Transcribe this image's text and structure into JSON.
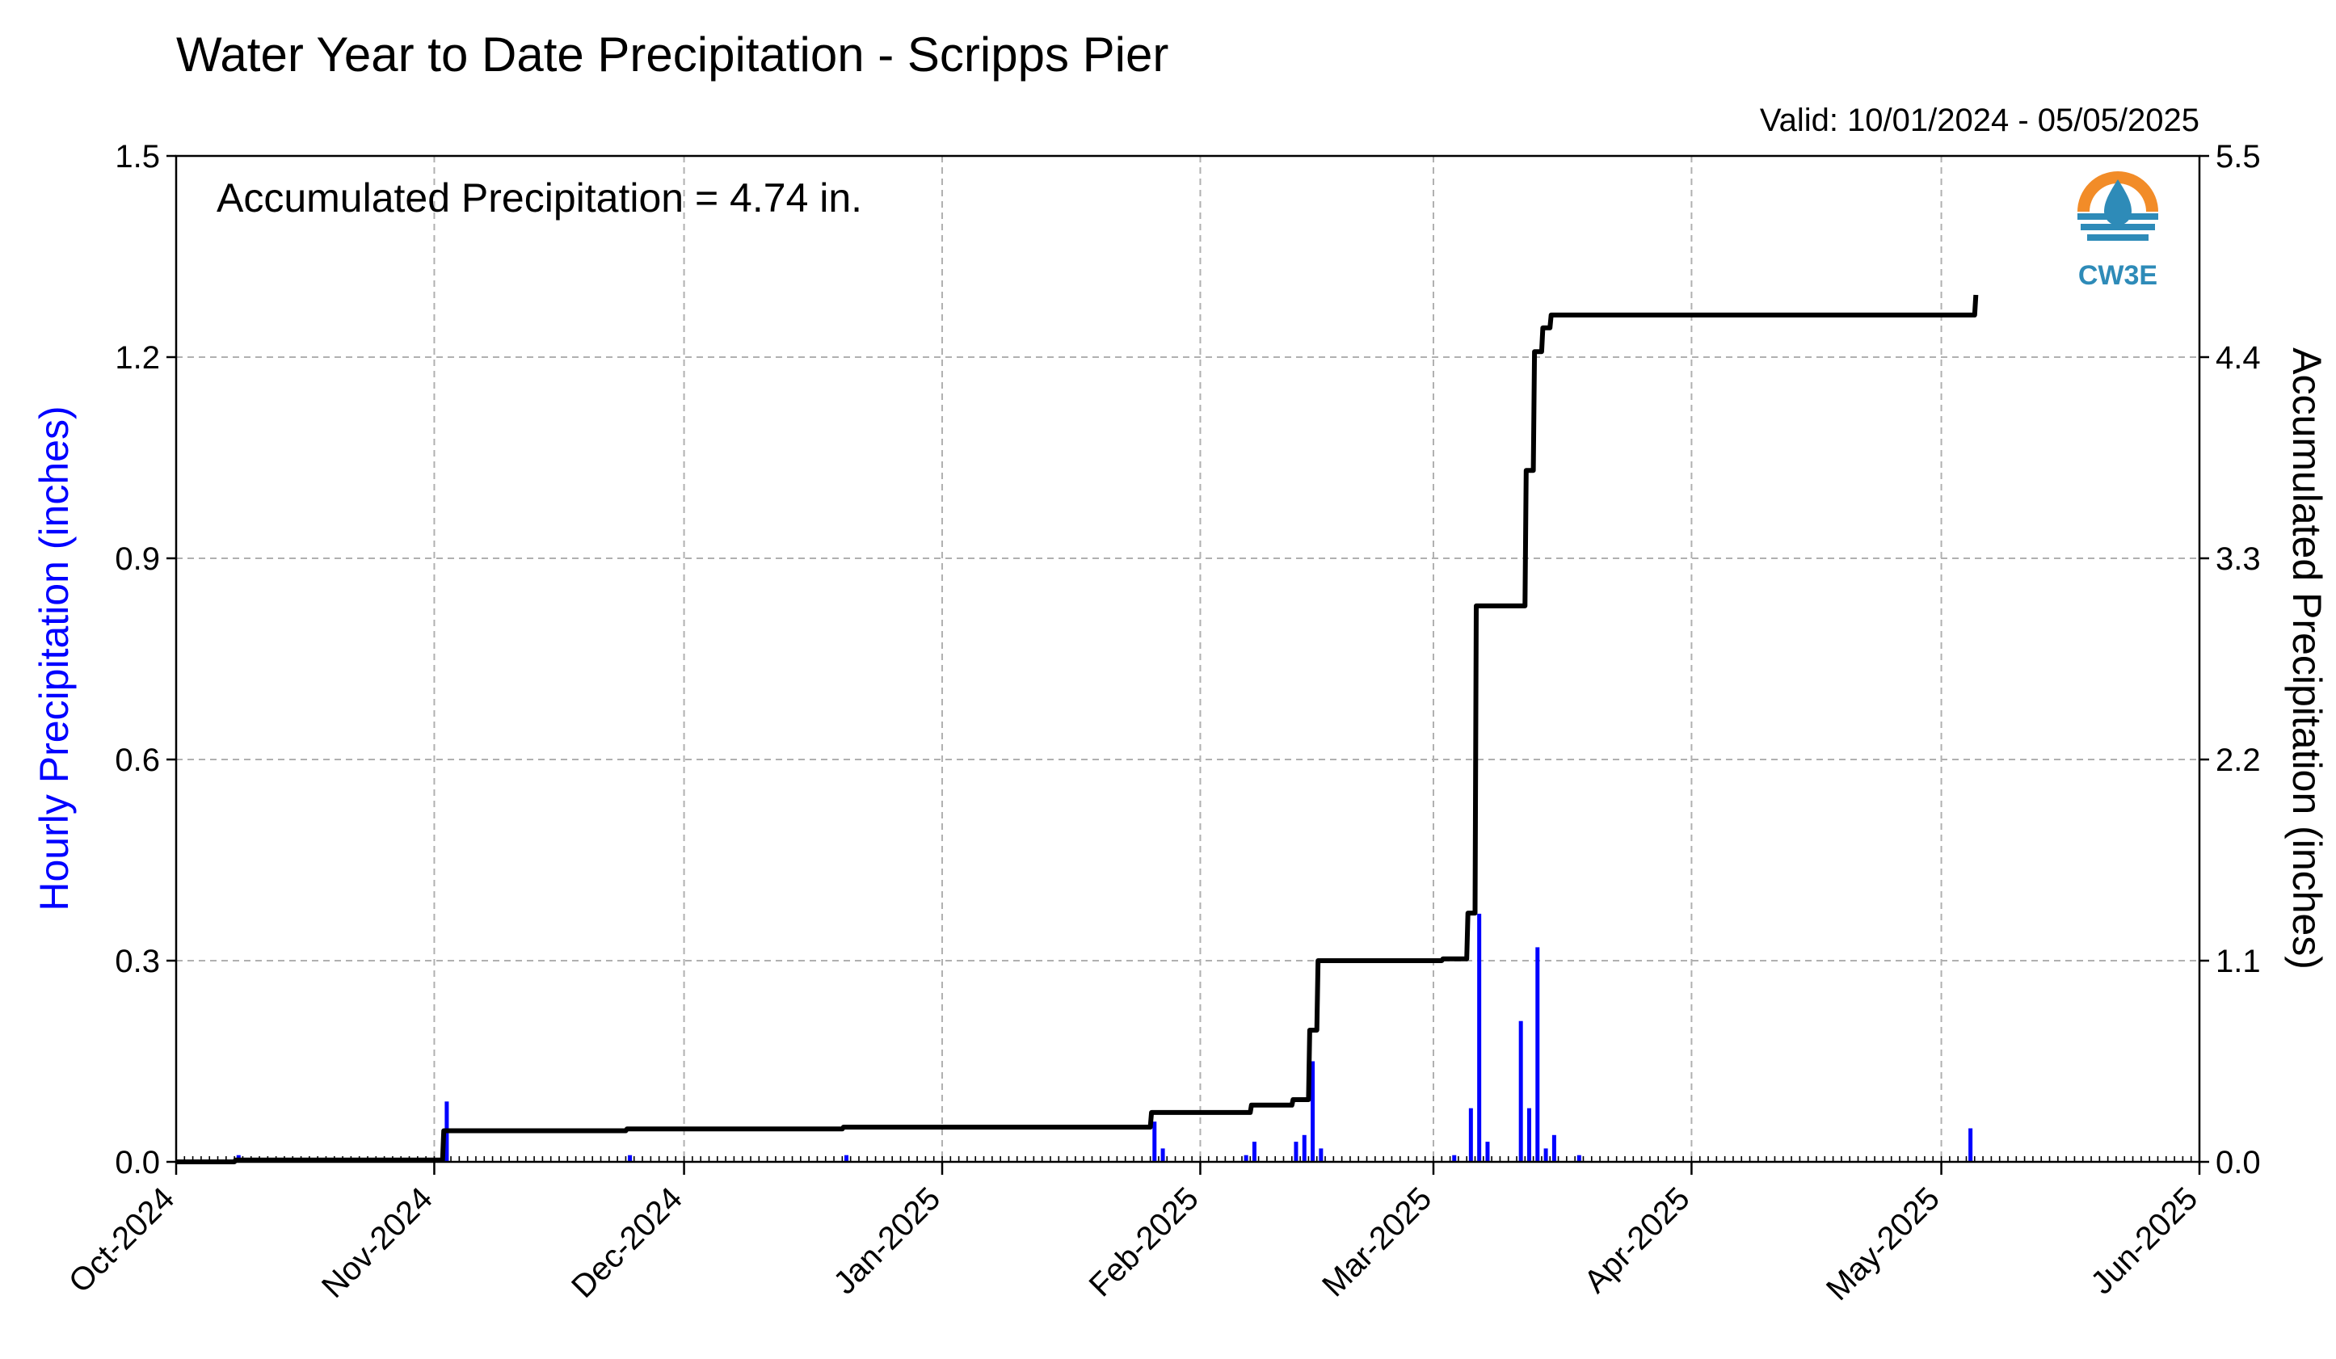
{
  "chart_data": {
    "type": "bar+line",
    "title": "Water Year to Date Precipitation - Scripps Pier",
    "subtitle": "Valid: 10/01/2024 - 05/05/2025",
    "annotation": "Accumulated Precipitation = 4.74 in.",
    "logo_text": "CW3E",
    "ylabel_left": "Hourly Precipitation (inches)",
    "ylabel_right": "Accumulated Precipitation (inches)",
    "ylim_left": [
      0,
      1.5
    ],
    "ylim_right": [
      0,
      5.5
    ],
    "yticks_left": [
      "0.0",
      "0.3",
      "0.6",
      "0.9",
      "1.2",
      "1.5"
    ],
    "yticks_right": [
      "0.0",
      "1.1",
      "2.2",
      "3.3",
      "4.4",
      "5.5"
    ],
    "xticks": [
      "Oct-2024",
      "Nov-2024",
      "Dec-2024",
      "Jan-2025",
      "Feb-2025",
      "Mar-2025",
      "Apr-2025",
      "May-2025",
      "Jun-2025"
    ],
    "grid": true,
    "colors": {
      "hourly": "#0000ff",
      "accumulated": "#000000"
    },
    "hourly_series": {
      "name": "Hourly Precipitation",
      "axis": "left",
      "date": [
        "2024-10-08",
        "2024-11-02",
        "2024-11-24",
        "2024-12-20",
        "2025-01-26",
        "2025-01-27",
        "2025-02-06",
        "2025-02-07",
        "2025-02-12",
        "2025-02-13",
        "2025-02-14",
        "2025-02-15",
        "2025-03-03",
        "2025-03-05",
        "2025-03-06",
        "2025-03-07",
        "2025-03-11",
        "2025-03-12",
        "2025-03-13",
        "2025-03-14",
        "2025-03-15",
        "2025-03-18",
        "2025-05-04"
      ],
      "values": [
        0.01,
        0.09,
        0.01,
        0.01,
        0.06,
        0.02,
        0.01,
        0.03,
        0.03,
        0.04,
        0.15,
        0.02,
        0.01,
        0.08,
        0.37,
        0.03,
        0.21,
        0.08,
        0.32,
        0.02,
        0.04,
        0.01,
        0.05
      ]
    },
    "accumulated_series": {
      "name": "Accumulated Precipitation",
      "axis": "right",
      "date": [
        "2024-10-01",
        "2024-10-08",
        "2024-11-02",
        "2024-11-24",
        "2024-12-20",
        "2025-01-26",
        "2025-02-07",
        "2025-02-12",
        "2025-02-14",
        "2025-02-15",
        "2025-03-02",
        "2025-03-05",
        "2025-03-06",
        "2025-03-11",
        "2025-03-12",
        "2025-03-13",
        "2025-03-14",
        "2025-03-15",
        "2025-05-04",
        "2025-05-05"
      ],
      "values": [
        0.0,
        0.01,
        0.17,
        0.18,
        0.19,
        0.27,
        0.31,
        0.34,
        0.72,
        1.1,
        1.11,
        1.36,
        3.04,
        3.04,
        3.78,
        4.43,
        4.56,
        4.63,
        4.63,
        4.74
      ]
    }
  }
}
